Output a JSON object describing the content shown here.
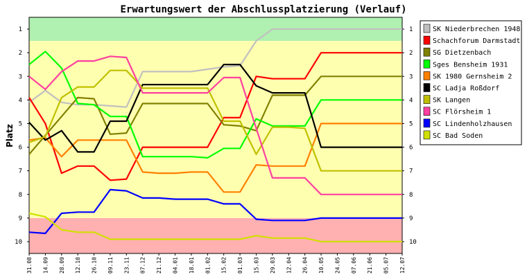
{
  "chart_data": {
    "type": "line",
    "title": "Erwartungswert der Abschlussplatzierung (Verlauf)",
    "ylabel": "Platz",
    "xlabel": "",
    "ylim": [
      0.5,
      10.5
    ],
    "y_inverted": true,
    "yticks": [
      "1",
      "2",
      "3",
      "4",
      "5",
      "6",
      "7",
      "8",
      "9",
      "10"
    ],
    "categories": [
      "31.08",
      "14.09",
      "28.09",
      "12.10",
      "26.10",
      "09.11",
      "23.11",
      "07.12",
      "21.12",
      "04.01",
      "18.01",
      "01.02",
      "15.02",
      "01.03",
      "15.03",
      "29.03",
      "12.04",
      "26.04",
      "10.05",
      "24.05",
      "07.06",
      "21.06",
      "05.07",
      "12.07"
    ],
    "bands": [
      {
        "from": 0.5,
        "to": 1.5,
        "color": "#b0f0b0"
      },
      {
        "from": 1.5,
        "to": 9.0,
        "color": "#ffffb0"
      },
      {
        "from": 9.0,
        "to": 10.5,
        "color": "#ffb0b0"
      }
    ],
    "legend_position": "right",
    "series": [
      {
        "name": "SK Niederbrechen 1948",
        "color": "#c0c0c0",
        "values": [
          4.1,
          3.6,
          4.1,
          4.2,
          4.2,
          4.25,
          4.3,
          2.8,
          2.8,
          2.8,
          2.8,
          2.7,
          2.6,
          2.55,
          1.5,
          1.0,
          1.0,
          1.0,
          1.0,
          1.0,
          1.0,
          1.0,
          1.0,
          1.0
        ]
      },
      {
        "name": "Schachforum Darmstadt",
        "color": "#ff0000",
        "values": [
          3.9,
          5.0,
          7.1,
          6.8,
          6.8,
          7.4,
          7.35,
          6.0,
          6.0,
          6.0,
          6.0,
          6.0,
          4.75,
          4.75,
          3.0,
          3.1,
          3.1,
          3.1,
          2.0,
          2.0,
          2.0,
          2.0,
          2.0,
          2.0
        ]
      },
      {
        "name": "SG Dietzenbach",
        "color": "#808000",
        "values": [
          6.3,
          5.5,
          4.7,
          3.9,
          3.95,
          5.45,
          5.4,
          4.15,
          4.15,
          4.15,
          4.15,
          4.15,
          5.05,
          5.1,
          5.3,
          3.8,
          3.8,
          3.8,
          3.0,
          3.0,
          3.0,
          3.0,
          3.0,
          3.0
        ]
      },
      {
        "name": "Sges Bensheim 1931",
        "color": "#00ff00",
        "values": [
          2.5,
          1.95,
          2.65,
          4.15,
          4.2,
          4.7,
          4.7,
          6.4,
          6.4,
          6.4,
          6.4,
          6.45,
          6.05,
          6.05,
          4.8,
          5.1,
          5.1,
          5.1,
          4.0,
          4.0,
          4.0,
          4.0,
          4.0,
          4.0
        ]
      },
      {
        "name": "SK 1980 Gernsheim 2",
        "color": "#ff8000",
        "values": [
          5.7,
          5.6,
          6.4,
          5.7,
          5.7,
          5.7,
          5.7,
          7.05,
          7.1,
          7.1,
          7.05,
          7.05,
          7.9,
          7.9,
          6.75,
          6.8,
          6.8,
          6.8,
          5.0,
          5.0,
          5.0,
          5.0,
          5.0,
          5.0
        ]
      },
      {
        "name": "SC Ladja Roßdorf",
        "color": "#000000",
        "values": [
          4.95,
          5.7,
          5.3,
          6.2,
          6.2,
          4.9,
          4.9,
          3.35,
          3.35,
          3.35,
          3.35,
          3.35,
          2.5,
          2.5,
          3.4,
          3.7,
          3.7,
          3.7,
          6.0,
          6.0,
          6.0,
          6.0,
          6.0,
          6.0
        ]
      },
      {
        "name": "SK Langen",
        "color": "#c0c000",
        "values": [
          5.8,
          5.55,
          3.9,
          3.45,
          3.45,
          2.75,
          2.75,
          3.5,
          3.5,
          3.5,
          3.5,
          3.5,
          4.9,
          4.9,
          6.3,
          5.15,
          5.15,
          5.2,
          7.0,
          7.0,
          7.0,
          7.0,
          7.0,
          7.0
        ]
      },
      {
        "name": "SC Flörsheim 1",
        "color": "#ff40a0",
        "values": [
          3.0,
          3.55,
          2.8,
          2.35,
          2.35,
          2.15,
          2.2,
          3.7,
          3.7,
          3.7,
          3.7,
          3.7,
          3.05,
          3.05,
          5.2,
          7.3,
          7.3,
          7.3,
          8.0,
          8.0,
          8.0,
          8.0,
          8.0,
          8.0
        ]
      },
      {
        "name": "SC Lindenholzhausen",
        "color": "#0000ff",
        "values": [
          9.6,
          9.65,
          8.8,
          8.75,
          8.75,
          7.8,
          7.85,
          8.15,
          8.15,
          8.2,
          8.2,
          8.2,
          8.4,
          8.4,
          9.05,
          9.1,
          9.1,
          9.1,
          9.0,
          9.0,
          9.0,
          9.0,
          9.0,
          9.0
        ]
      },
      {
        "name": "SC Bad Soden",
        "color": "#d0e000",
        "values": [
          8.8,
          8.95,
          9.5,
          9.6,
          9.6,
          9.9,
          9.9,
          9.9,
          9.9,
          9.9,
          9.9,
          9.9,
          9.9,
          9.9,
          9.75,
          9.85,
          9.85,
          9.85,
          10.0,
          10.0,
          10.0,
          10.0,
          10.0,
          10.0
        ]
      }
    ]
  }
}
